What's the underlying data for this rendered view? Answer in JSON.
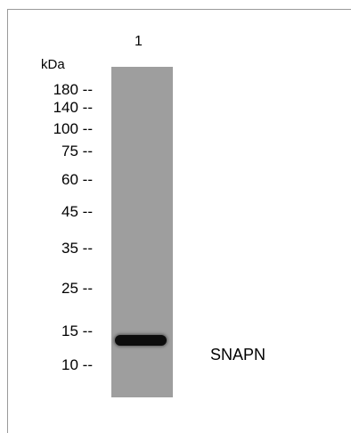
{
  "lane_label": "1",
  "unit": "kDa",
  "markers": [
    "180 --",
    "140 --",
    "100 --",
    "75 --",
    "60 --",
    "45 --",
    "35 --",
    "25 --",
    "15 --",
    "10 --"
  ],
  "band_label": "SNAPN"
}
